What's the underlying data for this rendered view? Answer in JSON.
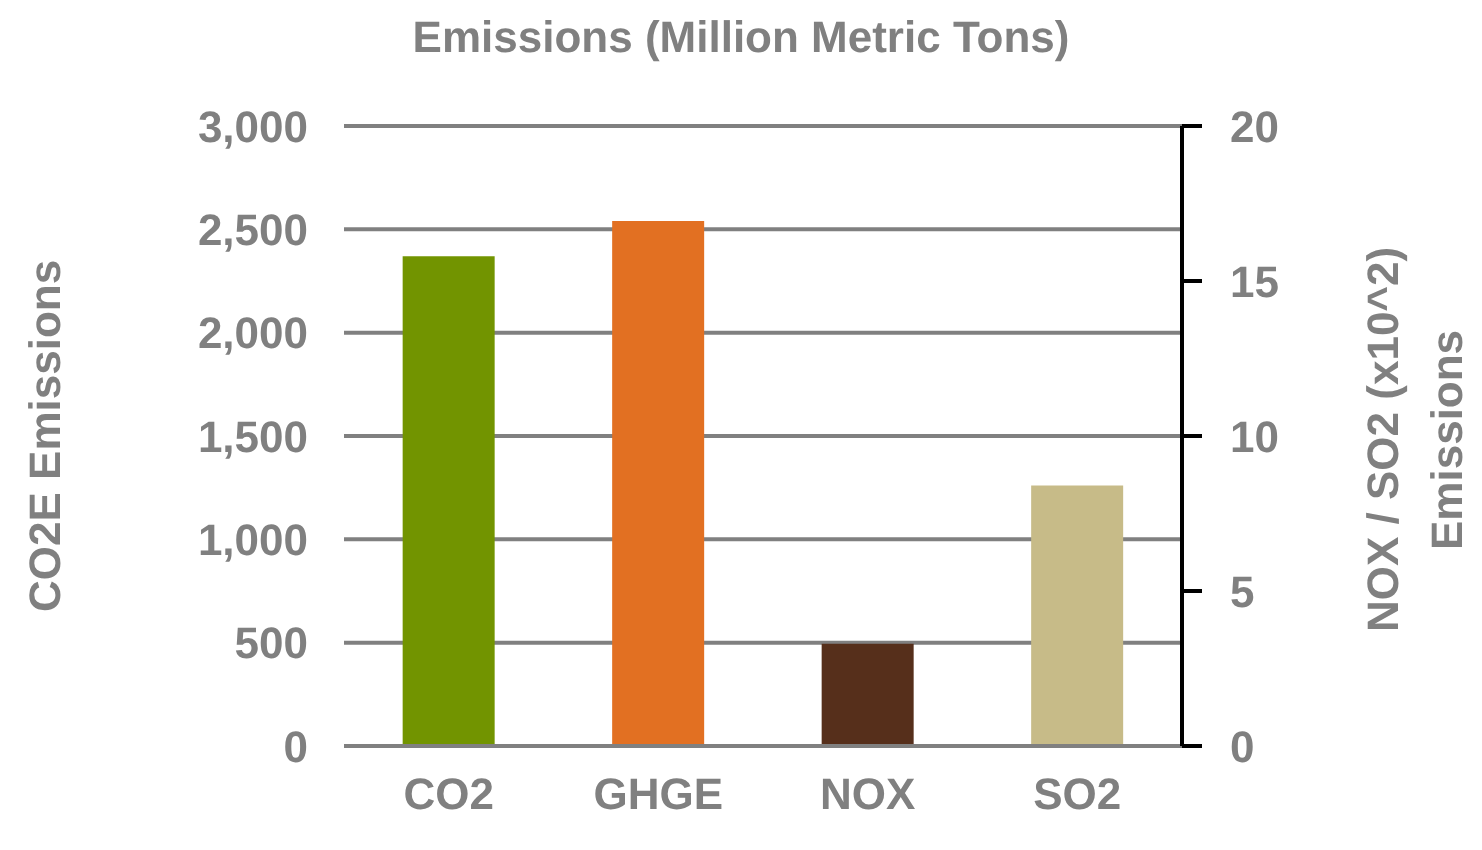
{
  "chart_data": {
    "type": "bar",
    "title": "Emissions (Million Metric Tons)",
    "ylabel": "CO2E Emissions",
    "y2label": "NOX / SO2 (x10^2) Emissions",
    "categories": [
      "CO2",
      "GHGE",
      "NOX",
      "SO2"
    ],
    "series": [
      {
        "values": [
          2370,
          2540,
          null,
          null
        ],
        "colors": [
          "#729400",
          "#e27022",
          null,
          null
        ]
      },
      {
        "axis": "y2",
        "values": [
          null,
          null,
          3.3,
          8.4
        ],
        "colors": [
          null,
          null,
          "#562f1b",
          "#c7bb88"
        ]
      }
    ],
    "ylim": [
      0,
      3000
    ],
    "yticks": [
      0,
      500,
      {
        "value": 1000,
        "label": "1,000"
      },
      {
        "value": 1500,
        "label": "1,500"
      },
      {
        "value": 2000,
        "label": "2,000"
      },
      {
        "value": 2500,
        "label": "2,500"
      },
      {
        "value": 3000,
        "label": "3,000"
      }
    ],
    "y2lim": [
      0,
      20
    ],
    "y2ticks": [
      0,
      5,
      10,
      15,
      20
    ],
    "grid": "y"
  }
}
